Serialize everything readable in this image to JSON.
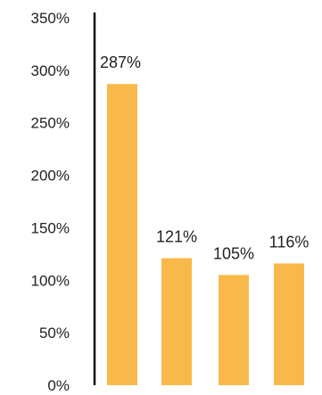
{
  "chart_data": {
    "type": "bar",
    "title": "",
    "xlabel": "",
    "ylabel": "",
    "categories": [
      "",
      "",
      "",
      ""
    ],
    "values": [
      287,
      121,
      105,
      116
    ],
    "data_labels": [
      "287%",
      "121%",
      "105%",
      "116%"
    ],
    "ylim": [
      0,
      350
    ],
    "y_ticks": [
      {
        "value": 0,
        "label": "0%"
      },
      {
        "value": 50,
        "label": "50%"
      },
      {
        "value": 100,
        "label": "100%"
      },
      {
        "value": 150,
        "label": "150%"
      },
      {
        "value": 200,
        "label": "200%"
      },
      {
        "value": 250,
        "label": "250%"
      },
      {
        "value": 300,
        "label": "300%"
      },
      {
        "value": 350,
        "label": "350%"
      }
    ],
    "grid": false,
    "legend": "none",
    "colors": {
      "bar": "#F9B94A",
      "axis": "#111111",
      "text": "#222222"
    }
  }
}
